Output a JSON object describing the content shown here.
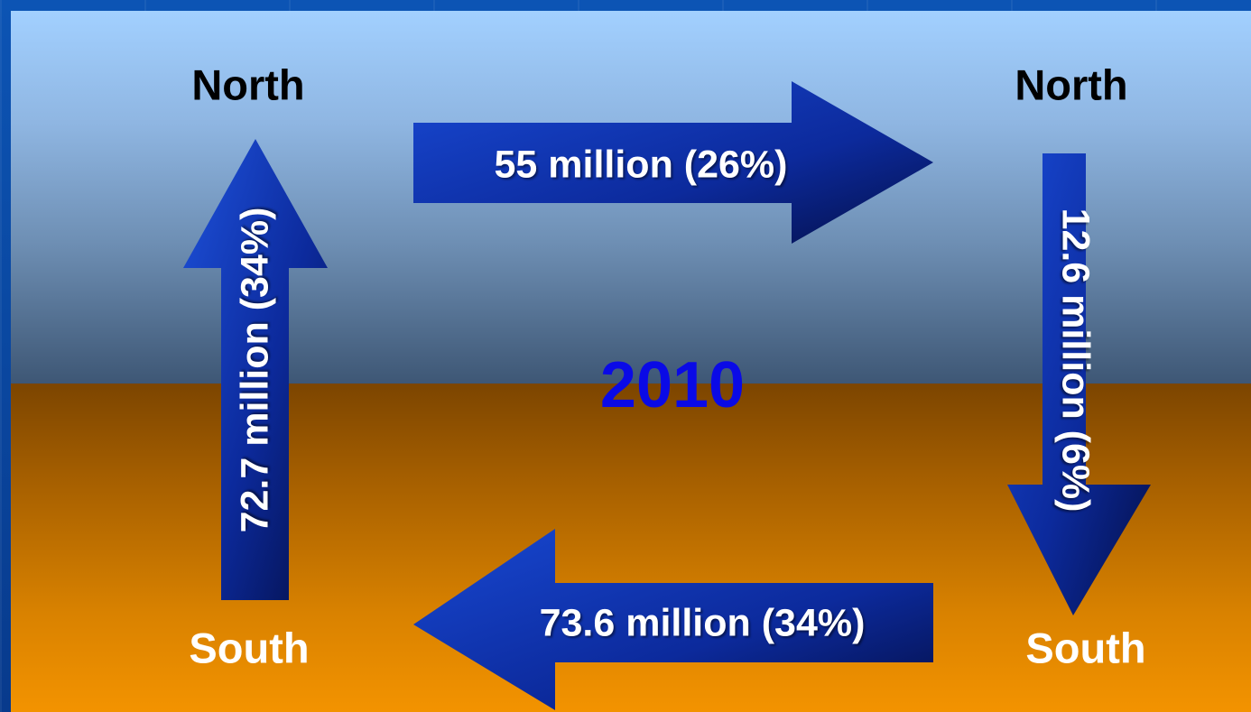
{
  "year": "2010",
  "nodes": {
    "north_left": "North",
    "north_right": "North",
    "south_left": "South",
    "south_right": "South"
  },
  "flows": {
    "north_to_north": "55 million (26%)",
    "north_to_south": "12.6 million (6%)",
    "south_to_south": "73.6 million (34%)",
    "south_to_north": "72.7 million (34%)"
  },
  "colors": {
    "arrow_light": "#1442c8",
    "arrow_dark": "#04104a",
    "year_text": "#0a0ae6"
  }
}
